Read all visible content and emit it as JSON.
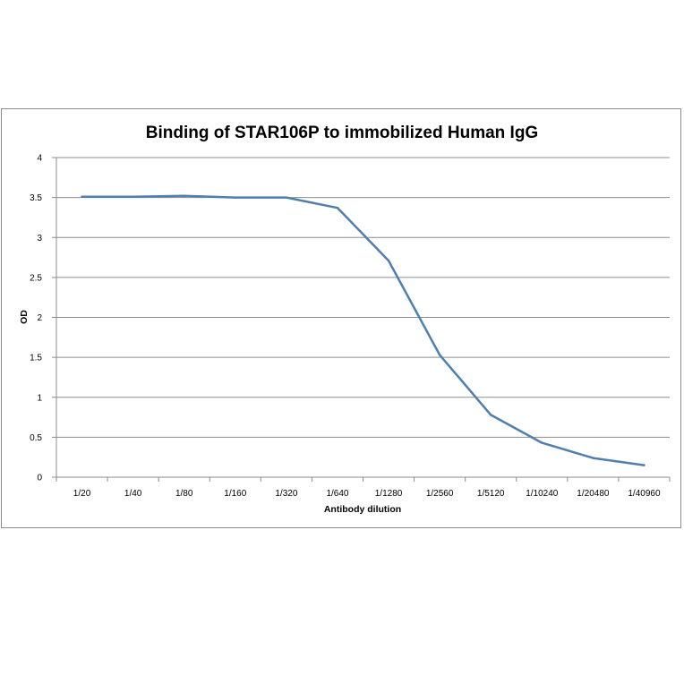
{
  "chart_data": {
    "type": "line",
    "title": "Binding of STAR106P to immobilized Human IgG",
    "xlabel": "Antibody dilution",
    "ylabel": "OD",
    "categories": [
      "1/20",
      "1/40",
      "1/80",
      "1/160",
      "1/320",
      "1/640",
      "1/1280",
      "1/2560",
      "1/5120",
      "1/10240",
      "1/20480",
      "1/40960"
    ],
    "series": [
      {
        "values": [
          3.51,
          3.51,
          3.52,
          3.5,
          3.5,
          3.37,
          2.71,
          1.53,
          0.78,
          0.43,
          0.24,
          0.15
        ]
      }
    ],
    "ylim": [
      0,
      4
    ],
    "yticks": [
      "0",
      "0.5",
      "1",
      "1.5",
      "2",
      "2.5",
      "3",
      "3.5",
      "4"
    ],
    "ytick_values": [
      0,
      0.5,
      1,
      1.5,
      2,
      2.5,
      3,
      3.5,
      4
    ],
    "grid": true,
    "legend": "none",
    "colors": {
      "line": "#4f7fb0",
      "grid": "#8c8c8c",
      "axis": "#8c8c8c"
    }
  }
}
